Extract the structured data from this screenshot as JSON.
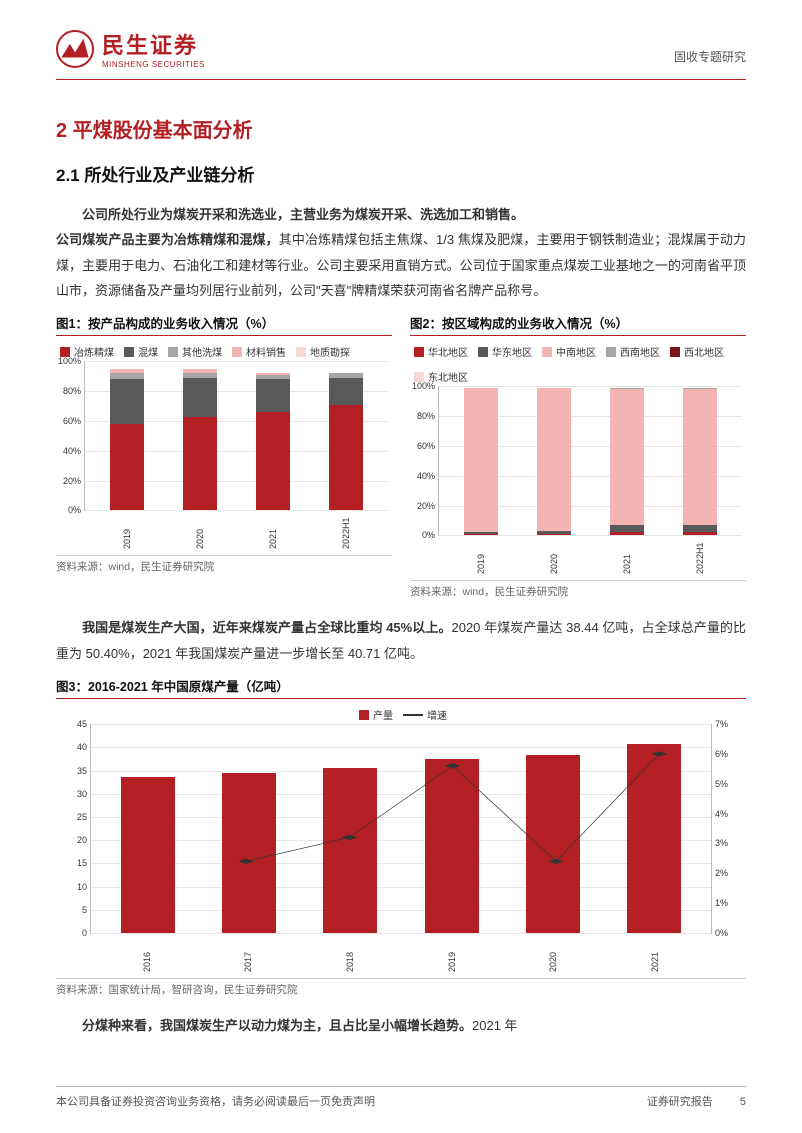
{
  "brand": {
    "cn": "民生证券",
    "en": "MINSHENG SECURITIES"
  },
  "header_right": "固收专题研究",
  "h1": "2 平煤股份基本面分析",
  "h2": "2.1 所处行业及产业链分析",
  "para1_bold": "公司所处行业为煤炭开采和洗选业，主营业务为煤炭开采、洗选加工和销售。",
  "para1_bold2": "公司煤炭产品主要为冶炼精煤和混煤，",
  "para1_rest": "其中冶炼精煤包括主焦煤、1/3 焦煤及肥煤，主要用于钢铁制造业；混煤属于动力煤，主要用于电力、石油化工和建材等行业。公司主要采用直销方式。公司位于国家重点煤炭工业基地之一的河南省平顶山市，资源储备及产量均列居行业前列，公司\"天喜\"牌精煤荣获河南省名牌产品称号。",
  "chart1": {
    "title": "图1：按产品构成的业务收入情况（%）",
    "legend": [
      {
        "label": "冶炼精煤",
        "color": "#b41f24"
      },
      {
        "label": "混煤",
        "color": "#595959"
      },
      {
        "label": "其他洗煤",
        "color": "#a6a6a6"
      },
      {
        "label": "材料销售",
        "color": "#f4b4b4"
      },
      {
        "label": "地质勘探",
        "color": "#f8d7d7"
      }
    ],
    "ylim": [
      0,
      100
    ],
    "ytick_step": 20,
    "categories": [
      "2019",
      "2020",
      "2021",
      "2022H1"
    ],
    "stacks": [
      [
        58,
        30,
        4,
        3,
        0
      ],
      [
        63,
        26,
        3,
        3,
        0
      ],
      [
        66,
        22,
        3,
        1,
        0
      ],
      [
        71,
        18,
        3,
        0,
        0
      ]
    ],
    "source": "资料来源：wind，民生证券研究院"
  },
  "chart2": {
    "title": "图2：按区域构成的业务收入情况（%）",
    "legend": [
      {
        "label": "华北地区",
        "color": "#b41f24"
      },
      {
        "label": "华东地区",
        "color": "#595959"
      },
      {
        "label": "中南地区",
        "color": "#f4b4b4"
      },
      {
        "label": "西南地区",
        "color": "#a6a6a6"
      },
      {
        "label": "西北地区",
        "color": "#7a1518"
      },
      {
        "label": "东北地区",
        "color": "#f8d7d7"
      }
    ],
    "ylim": [
      0,
      100
    ],
    "ytick_step": 20,
    "categories": [
      "2019",
      "2020",
      "2021",
      "2022H1"
    ],
    "stacks": [
      [
        1,
        1,
        97,
        0,
        0,
        0
      ],
      [
        1,
        2,
        96,
        0,
        0,
        0
      ],
      [
        2,
        5,
        91,
        1,
        0,
        0
      ],
      [
        2,
        5,
        91,
        1,
        0,
        0
      ]
    ],
    "source": "资料来源：wind，民生证券研究院"
  },
  "para2_bold": "我国是煤炭生产大国，近年来煤炭产量占全球比重均 45%以上。",
  "para2_rest": "2020 年煤炭产量达 38.44 亿吨，占全球总产量的比重为 50.40%，2021 年我国煤炭产量进一步增长至 40.71 亿吨。",
  "chart3": {
    "title": "图3：2016-2021 年中国原煤产量（亿吨）",
    "legend_bar": {
      "label": "产量",
      "color": "#b41f24"
    },
    "legend_line": {
      "label": "增速",
      "color": "#333333"
    },
    "y_left_lim": [
      0,
      45
    ],
    "y_left_step": 5,
    "y_right_lim": [
      0,
      7
    ],
    "y_right_step": 1,
    "categories": [
      "2016",
      "2017",
      "2018",
      "2019",
      "2020",
      "2021"
    ],
    "bar_values": [
      33.6,
      34.4,
      35.5,
      37.5,
      38.4,
      40.7
    ],
    "line_values": [
      null,
      2.4,
      3.2,
      5.6,
      2.4,
      6.0
    ],
    "source": "资料来源：国家统计局，智研咨询，民生证券研究院"
  },
  "para3_bold": "分煤种来看，我国煤炭生产以动力煤为主，且占比呈小幅增长趋势。",
  "para3_rest": "2021 年",
  "footer": {
    "left": "本公司具备证券投资咨询业务资格，请务必阅读最后一页免责声明",
    "right": "证券研究报告",
    "page": "5"
  },
  "colors": {
    "brand_red": "#b41f24",
    "grid": "#e5e5e5"
  }
}
